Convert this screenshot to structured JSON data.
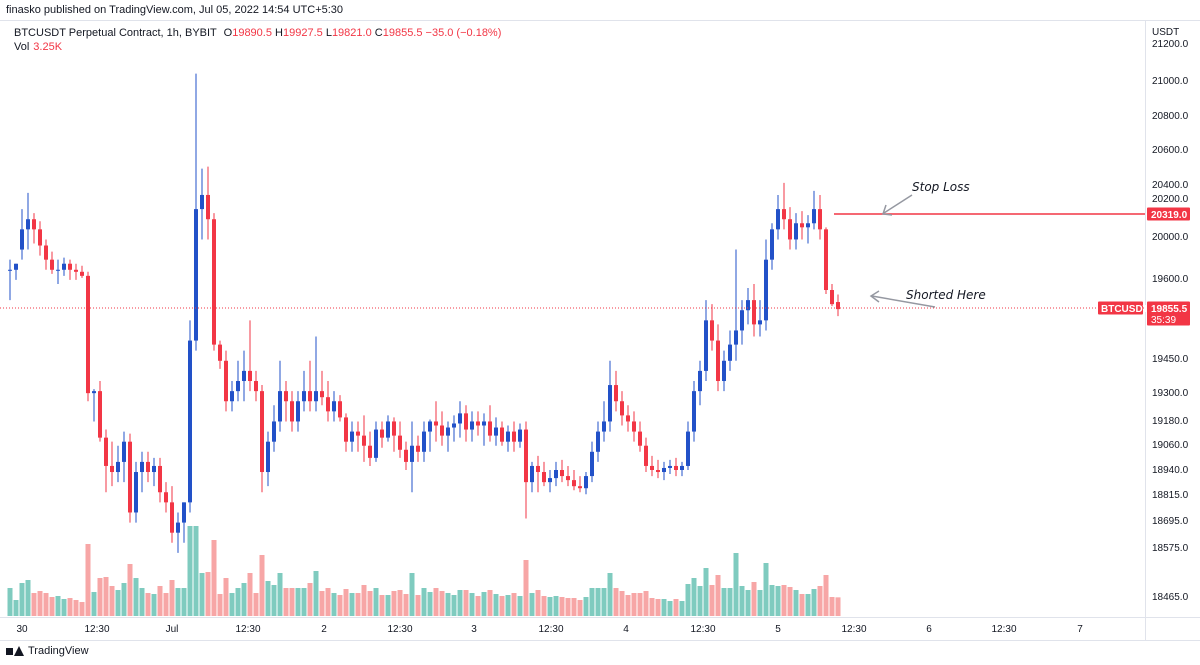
{
  "header": {
    "published": "finasko published on TradingView.com, Jul 05, 2022 14:54 UTC+5:30"
  },
  "legend": {
    "symbol": "BTCUSDT Perpetual Contract, 1h, BYBIT",
    "open_label": "O",
    "open": "19890.5",
    "high_label": "H",
    "high": "19927.5",
    "low_label": "L",
    "low": "19821.0",
    "close_label": "C",
    "close": "19855.5",
    "change": "−35.0 (−0.18%)",
    "vol_label": "Vol",
    "vol_value": "3.25K"
  },
  "price_axis": {
    "currency": "USDT",
    "labels": [
      "21200.0",
      "21000.0",
      "20800.0",
      "20600.0",
      "20400.0",
      "20200.0",
      "20000.0",
      "19600.0",
      "19450.0",
      "19300.0",
      "19180.0",
      "19060.0",
      "18940.0",
      "18815.0",
      "18695.0",
      "18575.0",
      "18465.0"
    ]
  },
  "tags": {
    "stop_price": "20319.0",
    "symbol_tag": "BTCUSDT",
    "last_price": "19855.5",
    "countdown": "35:39"
  },
  "annotations": {
    "stop": "Stop Loss",
    "short": "Shorted Here"
  },
  "footer": {
    "brand": "TradingView"
  },
  "colors": {
    "up": "#2251c8",
    "down": "#f23645",
    "vol_up": "#7fcbbf",
    "vol_down": "#f7a6a6",
    "stop_line": "#f23645"
  },
  "chart_data": {
    "type": "candlestick",
    "timeframe": "1h",
    "x_ticks": [
      "30",
      "12:30",
      "Jul",
      "12:30",
      "2",
      "12:30",
      "3",
      "12:30",
      "4",
      "12:30",
      "5",
      "12:30",
      "6",
      "12:30",
      "7"
    ],
    "stop_loss_level": 20319.0,
    "last_price": 19855.5,
    "candles": [
      {
        "o": 20050,
        "h": 20100,
        "l": 19900,
        "c": 20050
      },
      {
        "o": 20050,
        "h": 20080,
        "l": 20000,
        "c": 20080
      },
      {
        "o": 20150,
        "h": 20350,
        "l": 20100,
        "c": 20250
      },
      {
        "o": 20250,
        "h": 20430,
        "l": 20150,
        "c": 20300
      },
      {
        "o": 20300,
        "h": 20330,
        "l": 20180,
        "c": 20250
      },
      {
        "o": 20250,
        "h": 20290,
        "l": 20120,
        "c": 20170
      },
      {
        "o": 20170,
        "h": 20200,
        "l": 20050,
        "c": 20100
      },
      {
        "o": 20100,
        "h": 20140,
        "l": 20030,
        "c": 20050
      },
      {
        "o": 20050,
        "h": 20100,
        "l": 19980,
        "c": 20050
      },
      {
        "o": 20050,
        "h": 20110,
        "l": 20020,
        "c": 20080
      },
      {
        "o": 20080,
        "h": 20100,
        "l": 20000,
        "c": 20050
      },
      {
        "o": 20050,
        "h": 20080,
        "l": 20000,
        "c": 20040
      },
      {
        "o": 20040,
        "h": 20070,
        "l": 20010,
        "c": 20020
      },
      {
        "o": 20020,
        "h": 20040,
        "l": 19400,
        "c": 19440
      },
      {
        "o": 19440,
        "h": 19460,
        "l": 19300,
        "c": 19450
      },
      {
        "o": 19450,
        "h": 19500,
        "l": 19200,
        "c": 19220
      },
      {
        "o": 19220,
        "h": 19260,
        "l": 18950,
        "c": 19080
      },
      {
        "o": 19080,
        "h": 19200,
        "l": 18980,
        "c": 19050
      },
      {
        "o": 19050,
        "h": 19180,
        "l": 19000,
        "c": 19100
      },
      {
        "o": 19100,
        "h": 19250,
        "l": 19000,
        "c": 19200
      },
      {
        "o": 19200,
        "h": 19240,
        "l": 18800,
        "c": 18850
      },
      {
        "o": 18850,
        "h": 19100,
        "l": 18800,
        "c": 19050
      },
      {
        "o": 19050,
        "h": 19150,
        "l": 18950,
        "c": 19100
      },
      {
        "o": 19100,
        "h": 19150,
        "l": 19000,
        "c": 19050
      },
      {
        "o": 19050,
        "h": 19120,
        "l": 18980,
        "c": 19080
      },
      {
        "o": 19080,
        "h": 19120,
        "l": 18900,
        "c": 18950
      },
      {
        "o": 18950,
        "h": 19000,
        "l": 18850,
        "c": 18900
      },
      {
        "o": 18900,
        "h": 18980,
        "l": 18700,
        "c": 18750
      },
      {
        "o": 18750,
        "h": 18850,
        "l": 18650,
        "c": 18800
      },
      {
        "o": 18800,
        "h": 18900,
        "l": 18700,
        "c": 18900
      },
      {
        "o": 18900,
        "h": 19800,
        "l": 18850,
        "c": 19700
      },
      {
        "o": 19700,
        "h": 21020,
        "l": 19650,
        "c": 20350
      },
      {
        "o": 20350,
        "h": 20550,
        "l": 20200,
        "c": 20420
      },
      {
        "o": 20420,
        "h": 20560,
        "l": 20200,
        "c": 20300
      },
      {
        "o": 20300,
        "h": 20330,
        "l": 19650,
        "c": 19680
      },
      {
        "o": 19680,
        "h": 19700,
        "l": 19560,
        "c": 19600
      },
      {
        "o": 19600,
        "h": 19650,
        "l": 19350,
        "c": 19400
      },
      {
        "o": 19400,
        "h": 19500,
        "l": 19350,
        "c": 19450
      },
      {
        "o": 19450,
        "h": 19600,
        "l": 19400,
        "c": 19500
      },
      {
        "o": 19500,
        "h": 19650,
        "l": 19400,
        "c": 19550
      },
      {
        "o": 19550,
        "h": 19800,
        "l": 19450,
        "c": 19500
      },
      {
        "o": 19500,
        "h": 19550,
        "l": 19400,
        "c": 19450
      },
      {
        "o": 19450,
        "h": 19480,
        "l": 18950,
        "c": 19050
      },
      {
        "o": 19050,
        "h": 19250,
        "l": 18980,
        "c": 19200
      },
      {
        "o": 19200,
        "h": 19380,
        "l": 19150,
        "c": 19300
      },
      {
        "o": 19300,
        "h": 19600,
        "l": 19250,
        "c": 19450
      },
      {
        "o": 19450,
        "h": 19500,
        "l": 19300,
        "c": 19400
      },
      {
        "o": 19400,
        "h": 19450,
        "l": 19250,
        "c": 19300
      },
      {
        "o": 19300,
        "h": 19450,
        "l": 19250,
        "c": 19400
      },
      {
        "o": 19400,
        "h": 19550,
        "l": 19350,
        "c": 19450
      },
      {
        "o": 19450,
        "h": 19600,
        "l": 19350,
        "c": 19400
      },
      {
        "o": 19400,
        "h": 19720,
        "l": 19350,
        "c": 19450
      },
      {
        "o": 19450,
        "h": 19550,
        "l": 19380,
        "c": 19420
      },
      {
        "o": 19420,
        "h": 19500,
        "l": 19300,
        "c": 19350
      },
      {
        "o": 19350,
        "h": 19450,
        "l": 19300,
        "c": 19400
      },
      {
        "o": 19400,
        "h": 19430,
        "l": 19300,
        "c": 19320
      },
      {
        "o": 19320,
        "h": 19340,
        "l": 19150,
        "c": 19200
      },
      {
        "o": 19200,
        "h": 19300,
        "l": 19150,
        "c": 19250
      },
      {
        "o": 19250,
        "h": 19300,
        "l": 19150,
        "c": 19230
      },
      {
        "o": 19230,
        "h": 19330,
        "l": 19100,
        "c": 19180
      },
      {
        "o": 19180,
        "h": 19250,
        "l": 19080,
        "c": 19120
      },
      {
        "o": 19120,
        "h": 19300,
        "l": 19100,
        "c": 19260
      },
      {
        "o": 19260,
        "h": 19300,
        "l": 19170,
        "c": 19220
      },
      {
        "o": 19220,
        "h": 19330,
        "l": 19200,
        "c": 19300
      },
      {
        "o": 19300,
        "h": 19320,
        "l": 19150,
        "c": 19230
      },
      {
        "o": 19230,
        "h": 19300,
        "l": 19120,
        "c": 19160
      },
      {
        "o": 19160,
        "h": 19200,
        "l": 19060,
        "c": 19100
      },
      {
        "o": 19100,
        "h": 19300,
        "l": 18950,
        "c": 19180
      },
      {
        "o": 19180,
        "h": 19230,
        "l": 19100,
        "c": 19150
      },
      {
        "o": 19150,
        "h": 19300,
        "l": 19100,
        "c": 19250
      },
      {
        "o": 19250,
        "h": 19310,
        "l": 19150,
        "c": 19300
      },
      {
        "o": 19300,
        "h": 19400,
        "l": 19200,
        "c": 19280
      },
      {
        "o": 19280,
        "h": 19350,
        "l": 19180,
        "c": 19230
      },
      {
        "o": 19230,
        "h": 19300,
        "l": 19150,
        "c": 19270
      },
      {
        "o": 19270,
        "h": 19330,
        "l": 19200,
        "c": 19290
      },
      {
        "o": 19290,
        "h": 19400,
        "l": 19220,
        "c": 19340
      },
      {
        "o": 19340,
        "h": 19380,
        "l": 19200,
        "c": 19260
      },
      {
        "o": 19260,
        "h": 19350,
        "l": 19200,
        "c": 19300
      },
      {
        "o": 19300,
        "h": 19350,
        "l": 19230,
        "c": 19280
      },
      {
        "o": 19280,
        "h": 19340,
        "l": 19180,
        "c": 19300
      },
      {
        "o": 19300,
        "h": 19380,
        "l": 19200,
        "c": 19230
      },
      {
        "o": 19230,
        "h": 19320,
        "l": 19180,
        "c": 19270
      },
      {
        "o": 19270,
        "h": 19300,
        "l": 19180,
        "c": 19200
      },
      {
        "o": 19200,
        "h": 19280,
        "l": 19150,
        "c": 19250
      },
      {
        "o": 19250,
        "h": 19300,
        "l": 19150,
        "c": 19200
      },
      {
        "o": 19200,
        "h": 19290,
        "l": 19170,
        "c": 19260
      },
      {
        "o": 19260,
        "h": 19300,
        "l": 18820,
        "c": 19000
      },
      {
        "o": 19000,
        "h": 19100,
        "l": 18950,
        "c": 19080
      },
      {
        "o": 19080,
        "h": 19130,
        "l": 18950,
        "c": 19050
      },
      {
        "o": 19050,
        "h": 19100,
        "l": 18980,
        "c": 19000
      },
      {
        "o": 19000,
        "h": 19060,
        "l": 18950,
        "c": 19020
      },
      {
        "o": 19020,
        "h": 19100,
        "l": 18980,
        "c": 19060
      },
      {
        "o": 19060,
        "h": 19110,
        "l": 19000,
        "c": 19030
      },
      {
        "o": 19030,
        "h": 19080,
        "l": 18980,
        "c": 19010
      },
      {
        "o": 19010,
        "h": 19060,
        "l": 18960,
        "c": 18980
      },
      {
        "o": 18980,
        "h": 19030,
        "l": 18950,
        "c": 18970
      },
      {
        "o": 18970,
        "h": 19050,
        "l": 18940,
        "c": 19030
      },
      {
        "o": 19030,
        "h": 19200,
        "l": 19000,
        "c": 19150
      },
      {
        "o": 19150,
        "h": 19300,
        "l": 19100,
        "c": 19250
      },
      {
        "o": 19250,
        "h": 19400,
        "l": 19200,
        "c": 19300
      },
      {
        "o": 19300,
        "h": 19600,
        "l": 19250,
        "c": 19480
      },
      {
        "o": 19480,
        "h": 19550,
        "l": 19350,
        "c": 19400
      },
      {
        "o": 19400,
        "h": 19450,
        "l": 19280,
        "c": 19330
      },
      {
        "o": 19330,
        "h": 19380,
        "l": 19250,
        "c": 19300
      },
      {
        "o": 19300,
        "h": 19350,
        "l": 19200,
        "c": 19250
      },
      {
        "o": 19250,
        "h": 19300,
        "l": 19150,
        "c": 19180
      },
      {
        "o": 19180,
        "h": 19220,
        "l": 19050,
        "c": 19080
      },
      {
        "o": 19080,
        "h": 19130,
        "l": 19030,
        "c": 19060
      },
      {
        "o": 19060,
        "h": 19110,
        "l": 19020,
        "c": 19050
      },
      {
        "o": 19050,
        "h": 19100,
        "l": 19010,
        "c": 19070
      },
      {
        "o": 19070,
        "h": 19110,
        "l": 19040,
        "c": 19080
      },
      {
        "o": 19080,
        "h": 19120,
        "l": 19030,
        "c": 19060
      },
      {
        "o": 19060,
        "h": 19100,
        "l": 19030,
        "c": 19080
      },
      {
        "o": 19080,
        "h": 19300,
        "l": 19060,
        "c": 19250
      },
      {
        "o": 19250,
        "h": 19500,
        "l": 19200,
        "c": 19450
      },
      {
        "o": 19450,
        "h": 19600,
        "l": 19380,
        "c": 19550
      },
      {
        "o": 19550,
        "h": 19900,
        "l": 19500,
        "c": 19800
      },
      {
        "o": 19800,
        "h": 19880,
        "l": 19650,
        "c": 19700
      },
      {
        "o": 19700,
        "h": 19780,
        "l": 19450,
        "c": 19500
      },
      {
        "o": 19500,
        "h": 19650,
        "l": 19450,
        "c": 19600
      },
      {
        "o": 19600,
        "h": 19750,
        "l": 19550,
        "c": 19680
      },
      {
        "o": 19680,
        "h": 20150,
        "l": 19600,
        "c": 19750
      },
      {
        "o": 19750,
        "h": 19900,
        "l": 19680,
        "c": 19850
      },
      {
        "o": 19850,
        "h": 19960,
        "l": 19780,
        "c": 19900
      },
      {
        "o": 19900,
        "h": 19980,
        "l": 19720,
        "c": 19780
      },
      {
        "o": 19780,
        "h": 19900,
        "l": 19720,
        "c": 19800
      },
      {
        "o": 19800,
        "h": 20200,
        "l": 19750,
        "c": 20100
      },
      {
        "o": 20100,
        "h": 20280,
        "l": 20050,
        "c": 20250
      },
      {
        "o": 20250,
        "h": 20420,
        "l": 20200,
        "c": 20350
      },
      {
        "o": 20350,
        "h": 20480,
        "l": 20250,
        "c": 20300
      },
      {
        "o": 20300,
        "h": 20360,
        "l": 20150,
        "c": 20200
      },
      {
        "o": 20200,
        "h": 20330,
        "l": 20150,
        "c": 20280
      },
      {
        "o": 20280,
        "h": 20340,
        "l": 20200,
        "c": 20260
      },
      {
        "o": 20260,
        "h": 20320,
        "l": 20180,
        "c": 20280
      },
      {
        "o": 20280,
        "h": 20440,
        "l": 20250,
        "c": 20350
      },
      {
        "o": 20350,
        "h": 20420,
        "l": 20200,
        "c": 20250
      },
      {
        "o": 20250,
        "h": 20260,
        "l": 19930,
        "c": 19950
      },
      {
        "o": 19950,
        "h": 19980,
        "l": 19870,
        "c": 19880
      },
      {
        "o": 19890.5,
        "h": 19927.5,
        "l": 19821,
        "c": 19855.5
      }
    ]
  }
}
